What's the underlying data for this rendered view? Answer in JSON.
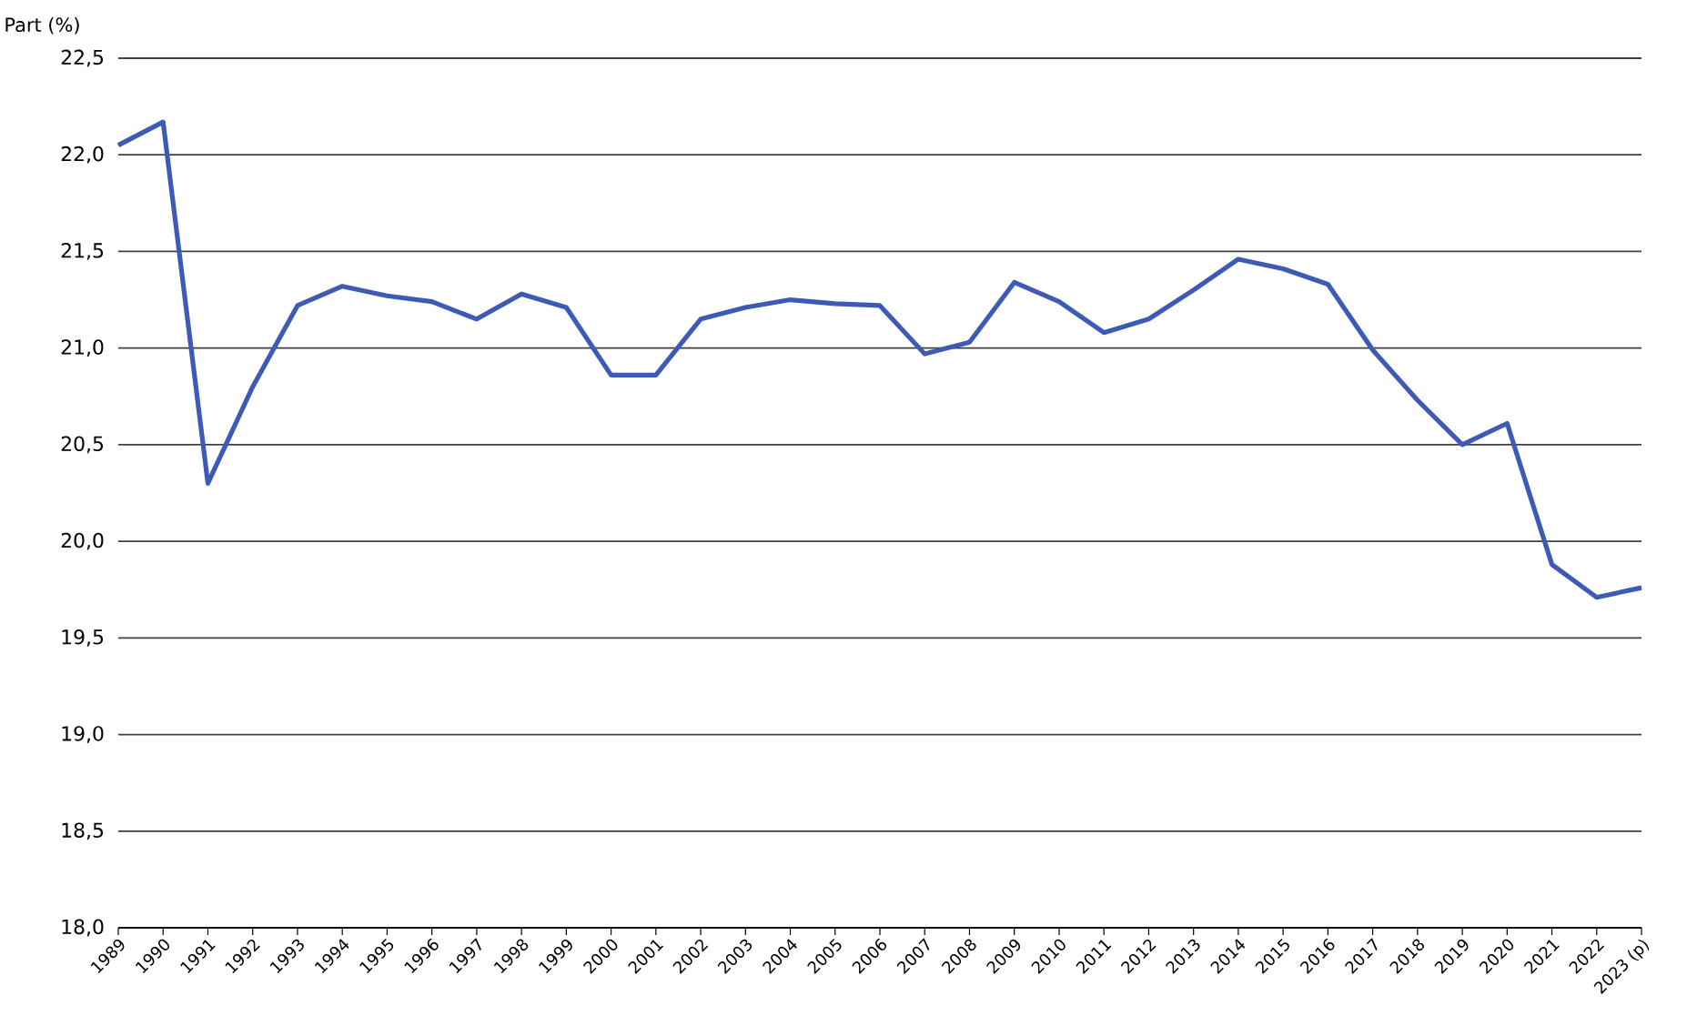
{
  "chart_data": {
    "type": "line",
    "ylabel": "Part (%)",
    "categories": [
      "1989",
      "1990",
      "1991",
      "1992",
      "1993",
      "1994",
      "1995",
      "1996",
      "1997",
      "1998",
      "1999",
      "2000",
      "2001",
      "2002",
      "2003",
      "2004",
      "2005",
      "2006",
      "2007",
      "2008",
      "2009",
      "2010",
      "2011",
      "2012",
      "2013",
      "2014",
      "2015",
      "2016",
      "2017",
      "2018",
      "2019",
      "2020",
      "2021",
      "2022",
      "2023 (p)"
    ],
    "values": [
      22.05,
      22.17,
      20.3,
      20.8,
      21.22,
      21.32,
      21.27,
      21.24,
      21.15,
      21.28,
      21.21,
      20.86,
      20.86,
      21.15,
      21.21,
      21.25,
      21.23,
      21.22,
      20.97,
      21.03,
      21.34,
      21.24,
      21.08,
      21.15,
      21.3,
      21.46,
      21.41,
      21.33,
      20.99,
      20.73,
      20.5,
      20.61,
      19.88,
      19.71,
      19.76
    ],
    "color": "#3d5bb5",
    "ylim": [
      18.0,
      22.5
    ],
    "yticks": [
      {
        "value": 18.0,
        "label": "18,0"
      },
      {
        "value": 18.5,
        "label": "18,5"
      },
      {
        "value": 19.0,
        "label": "19,0"
      },
      {
        "value": 19.5,
        "label": "19,5"
      },
      {
        "value": 20.0,
        "label": "20,0"
      },
      {
        "value": 20.5,
        "label": "20,5"
      },
      {
        "value": 21.0,
        "label": "21,0"
      },
      {
        "value": 21.5,
        "label": "21,5"
      },
      {
        "value": 22.0,
        "label": "22,0"
      },
      {
        "value": 22.5,
        "label": "22,5"
      }
    ],
    "grid": "y",
    "marker": "none",
    "line_style": "solid"
  }
}
